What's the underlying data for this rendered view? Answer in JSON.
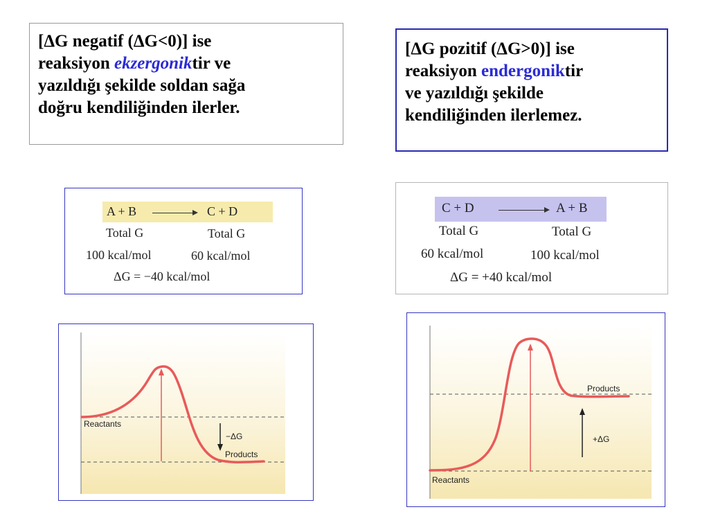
{
  "left_text": {
    "line1": "[ΔG negatif (ΔG<0)] ise",
    "line2_pre": "reaksiyon ",
    "line2_kw": "ekzergonik",
    "line2_post": "tir ve",
    "line3": "yazıldığı şekilde soldan sağa",
    "line4": "doğru kendiliğinden ilerler."
  },
  "right_text": {
    "line1": "[ΔG pozitif (ΔG>0)] ise",
    "line2_pre": "reaksiyon ",
    "line2_kw": "endergonik",
    "line2_post": "tir",
    "line3": "ve yazıldığı şekilde",
    "line4": "kendiliğinden ilerlemez."
  },
  "exergonic_equation": {
    "reactants": "A + B",
    "products": "C + D",
    "left_label": "Total G",
    "right_label": "Total G",
    "left_value": "100 kcal/mol",
    "right_value": "60 kcal/mol",
    "delta": "ΔG = −40 kcal/mol"
  },
  "endergonic_equation": {
    "reactants": "C + D",
    "products": "A + B",
    "left_label": "Total G",
    "right_label": "Total G",
    "left_value": "60 kcal/mol",
    "right_value": "100 kcal/mol",
    "delta": "ΔG = +40 kcal/mol"
  },
  "exergonic_diagram": {
    "reactants_label": "Reactants",
    "products_label": "Products",
    "delta_label": "−ΔG"
  },
  "endergonic_diagram": {
    "reactants_label": "Reactants",
    "products_label": "Products",
    "delta_label": "+ΔG"
  },
  "colors": {
    "curve": "#e85a5a",
    "keyword": "#2b2bd6",
    "highlight_left": "#f6ebad",
    "highlight_right": "#c6c2ee"
  }
}
